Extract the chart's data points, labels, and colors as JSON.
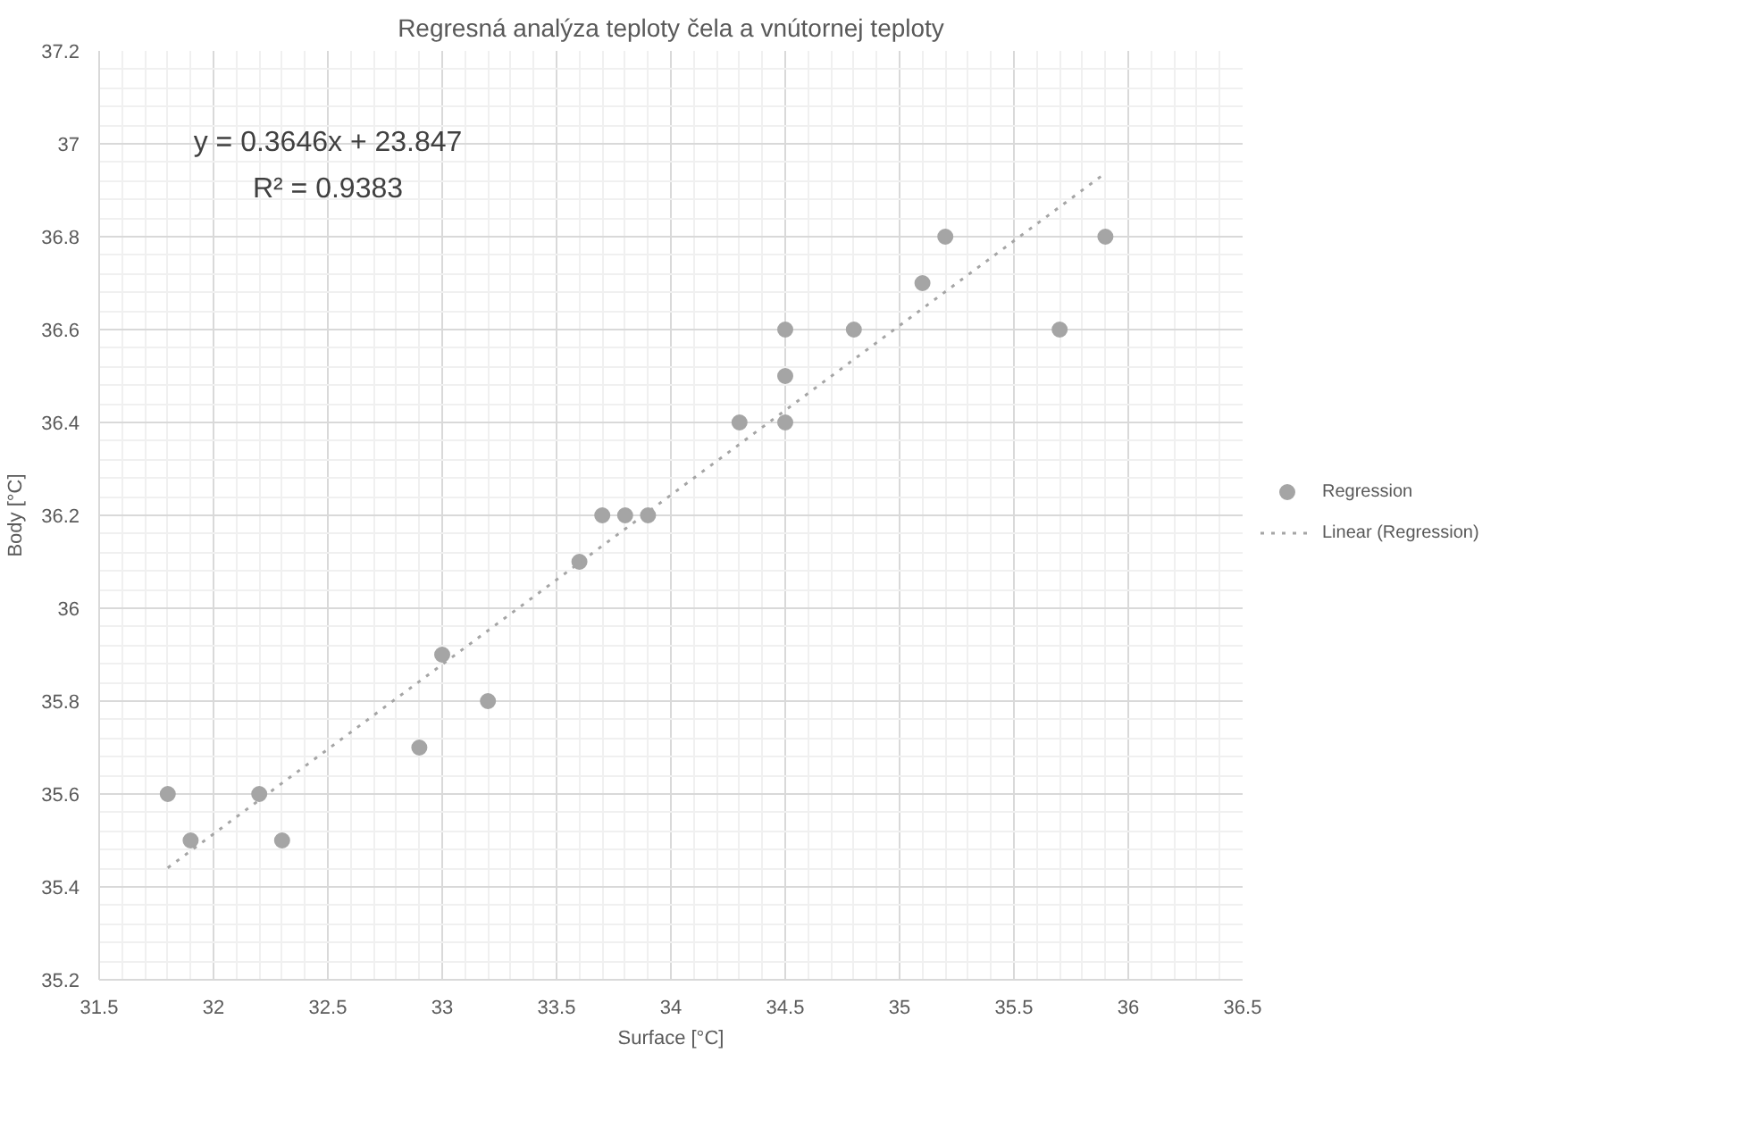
{
  "chart_data": {
    "type": "scatter",
    "title": "Regresná analýza teploty čela a vnútornej teploty",
    "xlabel": "Surface [°C]",
    "ylabel": "Body [°C]",
    "annotations": [
      "y = 0.3646x + 23.847",
      "R² = 0.9383"
    ],
    "series": [
      {
        "name": "Regression",
        "color": "#a5a5a5",
        "marker": "circle",
        "x": [
          31.8,
          31.9,
          32.2,
          32.3,
          32.9,
          33.0,
          33.2,
          33.6,
          33.7,
          33.8,
          33.9,
          34.3,
          34.5,
          34.5,
          34.5,
          34.8,
          35.1,
          35.2,
          35.7,
          35.9
        ],
        "values": [
          35.6,
          35.5,
          35.6,
          35.5,
          35.7,
          35.9,
          35.8,
          36.1,
          36.2,
          36.2,
          36.2,
          36.4,
          36.4,
          36.5,
          36.6,
          36.6,
          36.7,
          36.8,
          36.6,
          36.8
        ]
      },
      {
        "name": "Linear (Regression)",
        "type": "line",
        "color": "#a5a5a5",
        "line_style": "dotted",
        "marker": "none",
        "x": [
          31.8,
          35.9
        ],
        "values": [
          35.441,
          36.937
        ]
      }
    ],
    "xlim": [
      31.5,
      36.5
    ],
    "xticks": [
      31.5,
      32,
      32.5,
      33,
      33.5,
      34,
      34.5,
      35,
      35.5,
      36,
      36.5
    ],
    "ylim": [
      35.2,
      37.2
    ],
    "yticks": [
      35.2,
      35.4,
      35.6,
      35.8,
      36,
      36.2,
      36.4,
      36.6,
      36.8,
      37,
      37.2
    ],
    "grid": true,
    "legend": "right"
  }
}
